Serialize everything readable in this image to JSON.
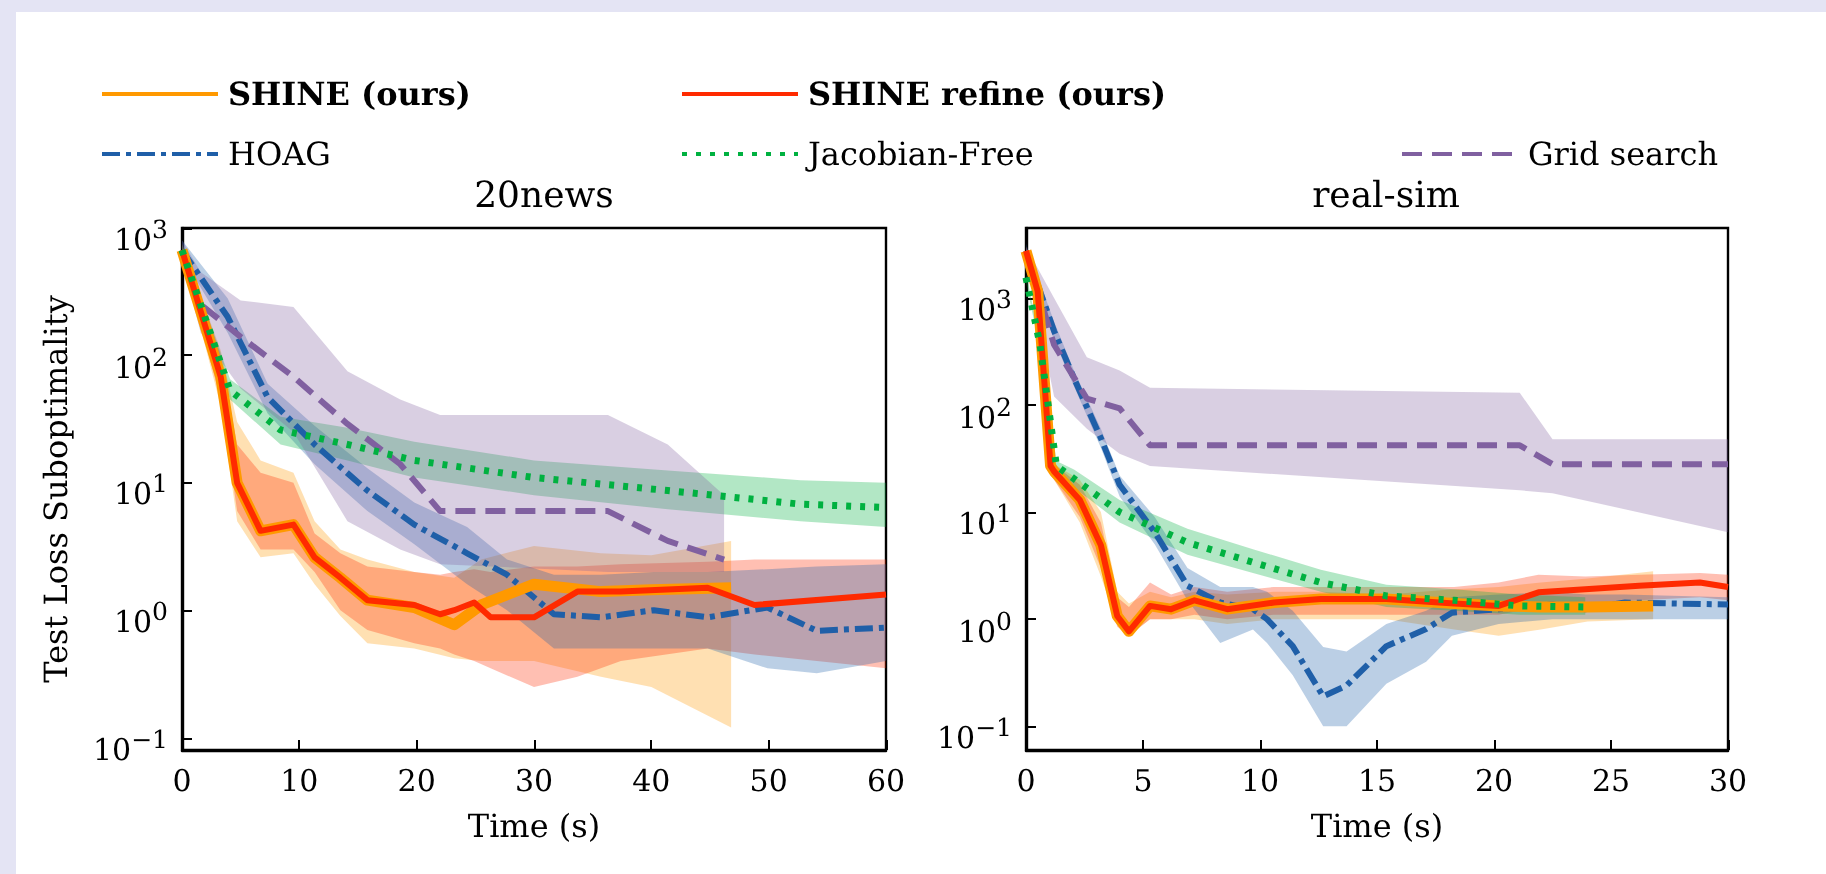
{
  "chart_data": [
    {
      "type": "line",
      "title": "20news",
      "xlabel": "Time (s)",
      "ylabel": "Test Loss Suboptimality",
      "log": "y",
      "legend": "top",
      "marker": "none",
      "grid": false,
      "xlim": [
        0,
        60
      ],
      "xticks": [
        0,
        10,
        20,
        30,
        40,
        50,
        60
      ],
      "ylim": [
        0.08,
        1000
      ],
      "yticks": [
        {
          "value": 0.1,
          "label": "10$^{−1}$"
        },
        {
          "value": 1,
          "label": "10$^{0}$"
        },
        {
          "value": 10,
          "label": "10$^{1}$"
        },
        {
          "value": 100,
          "label": "10$^{2}$"
        },
        {
          "value": 1000,
          "label": "10$^{3}$"
        }
      ],
      "series": [
        {
          "name": "SHINE (ours)",
          "color": "#ff9900",
          "line_style": "solid",
          "x": [
            0,
            3.3,
            4.7,
            6.7,
            9.5,
            11.3,
            13.5,
            15.8,
            19.8,
            23.2,
            25.5,
            30,
            35.7,
            40,
            46.8
          ],
          "values": [
            670,
            68,
            10,
            4.2,
            4.7,
            2.6,
            1.8,
            1.2,
            1.05,
            0.77,
            1.1,
            1.6,
            1.4,
            1.45,
            1.5
          ],
          "lower": [
            600,
            40,
            5,
            2.6,
            2.8,
            1.6,
            0.9,
            0.55,
            0.5,
            0.42,
            0.4,
            0.4,
            0.3,
            0.25,
            0.12
          ],
          "upper": [
            750,
            110,
            30,
            15,
            12,
            5,
            3,
            2.5,
            2,
            1.8,
            2.5,
            3.2,
            2.8,
            2.7,
            3.5
          ]
        },
        {
          "name": "SHINE refine (ours)",
          "color": "#ff2a00",
          "line_style": "solid",
          "x": [
            0,
            3.3,
            4.7,
            6.7,
            9.5,
            11.3,
            13.5,
            15.8,
            19.8,
            22,
            23.2,
            24.9,
            26.3,
            30,
            33.7,
            37.4,
            44.8,
            48.8,
            60
          ],
          "values": [
            670,
            68,
            10,
            4.2,
            4.7,
            2.6,
            1.8,
            1.2,
            1.1,
            0.93,
            1.0,
            1.15,
            0.88,
            0.88,
            1.4,
            1.4,
            1.5,
            1.1,
            1.33
          ],
          "lower": [
            600,
            45,
            6,
            3,
            3,
            2,
            1,
            0.7,
            0.55,
            0.5,
            0.45,
            0.4,
            0.35,
            0.25,
            0.3,
            0.4,
            0.5,
            0.45,
            0.35
          ],
          "upper": [
            750,
            100,
            20,
            12,
            10,
            4,
            2.8,
            2.2,
            2,
            1.9,
            2,
            2.1,
            2,
            2.2,
            2.2,
            2.3,
            2.4,
            2.5,
            2.5
          ]
        },
        {
          "name": "HOAG",
          "color": "#1f5fa8",
          "line_style": "dashdot",
          "x": [
            0,
            3.9,
            7.3,
            11.3,
            15.8,
            19.8,
            24.3,
            27.7,
            31.7,
            35.7,
            40.2,
            44.8,
            49.9,
            54.1,
            60
          ],
          "values": [
            670,
            200,
            47,
            20,
            8.7,
            4.7,
            2.8,
            1.9,
            0.93,
            0.88,
            1.0,
            0.88,
            1.05,
            0.69,
            0.73
          ],
          "lower": [
            600,
            150,
            35,
            14,
            6,
            3.3,
            1.6,
            1,
            0.5,
            0.5,
            0.5,
            0.5,
            0.35,
            0.32,
            0.4
          ],
          "upper": [
            800,
            280,
            60,
            28,
            13,
            7,
            4.5,
            2.5,
            1.9,
            1.9,
            2,
            2,
            2.1,
            2.2,
            2.3
          ]
        },
        {
          "name": "Jacobian-Free",
          "color": "#00b140",
          "line_style": "dotted",
          "x": [
            0,
            4.1,
            8.4,
            14.1,
            19.8,
            30,
            41.4,
            52.7,
            60
          ],
          "values": [
            670,
            53,
            26,
            20,
            15,
            11,
            8.7,
            6.8,
            6.4
          ],
          "lower": [
            600,
            45,
            20,
            15,
            11,
            8,
            6.2,
            5,
            4.5
          ],
          "upper": [
            750,
            65,
            33,
            27,
            21,
            15,
            12.5,
            10.5,
            10
          ]
        },
        {
          "name": "Grid search",
          "color": "#8060a0",
          "line_style": "dashed",
          "x": [
            0,
            1.6,
            5,
            9.5,
            14.1,
            18.6,
            22,
            36.3,
            41.4,
            46.2
          ],
          "values": [
            670,
            250,
            140,
            68,
            29,
            14,
            6.0,
            6.0,
            3.5,
            2.5
          ],
          "lower": [
            550,
            150,
            55,
            25,
            5,
            3,
            2.3,
            2,
            2,
            2
          ],
          "upper": [
            800,
            450,
            270,
            240,
            75,
            45,
            34,
            34,
            20,
            8
          ]
        }
      ]
    },
    {
      "type": "line",
      "title": "real-sim",
      "xlabel": "Time (s)",
      "log": "y",
      "marker": "none",
      "grid": false,
      "xlim": [
        0,
        30
      ],
      "xticks": [
        0,
        5,
        10,
        15,
        20,
        25,
        30
      ],
      "ylim": [
        0.06,
        4500
      ],
      "yticks": [
        {
          "value": 0.1,
          "label": "10$^{−1}$"
        },
        {
          "value": 1,
          "label": "10$^{0}$"
        },
        {
          "value": 10,
          "label": "10$^{1}$"
        },
        {
          "value": 100,
          "label": "10$^{2}$"
        },
        {
          "value": 1000,
          "label": "10$^{3}$"
        }
      ],
      "series": [
        {
          "color": "#ff9900",
          "line_style": "solid",
          "x": [
            0,
            0.5,
            1.05,
            1.2,
            2.3,
            3.2,
            3.9,
            4.4,
            5.3,
            6.2,
            7.2,
            8.6,
            10.6,
            12.6,
            15.4,
            18.3,
            20.2,
            22,
            24,
            26.8
          ],
          "values": [
            2750,
            1150,
            27,
            24,
            13,
            4.9,
            1.07,
            0.77,
            1.33,
            1.24,
            1.5,
            1.24,
            1.43,
            1.54,
            1.54,
            1.4,
            1.33,
            1.3,
            1.3,
            1.33
          ],
          "lower": [
            2400,
            900,
            22,
            20,
            8,
            2.5,
            0.9,
            0.7,
            1.0,
            1.0,
            1.0,
            0.9,
            1.0,
            1.0,
            1.0,
            0.8,
            0.7,
            0.8,
            0.95,
            1.0
          ],
          "upper": [
            3000,
            1400,
            32,
            28,
            20,
            10,
            1.8,
            1.4,
            1.8,
            1.6,
            1.8,
            1.7,
            1.8,
            1.8,
            1.7,
            1.9,
            2.0,
            2.2,
            2.4,
            2.8
          ]
        },
        {
          "color": "#ff2a00",
          "line_style": "solid",
          "x": [
            0,
            0.5,
            1.05,
            1.2,
            2.3,
            3.2,
            3.9,
            4.4,
            5.3,
            6.2,
            7.2,
            8.6,
            10.6,
            12.6,
            15.4,
            18.3,
            20.2,
            21.9,
            23.9,
            26.2,
            28.8,
            30
          ],
          "values": [
            2750,
            1150,
            27,
            24,
            13,
            4.9,
            1.07,
            0.77,
            1.33,
            1.24,
            1.5,
            1.24,
            1.43,
            1.54,
            1.54,
            1.4,
            1.33,
            1.78,
            1.9,
            2.05,
            2.2,
            2.0
          ],
          "lower": [
            2400,
            900,
            22,
            20,
            9,
            3,
            0.85,
            0.7,
            1.0,
            1.0,
            1.1,
            1.0,
            1.1,
            1.1,
            1.1,
            1.1,
            1.1,
            1.3,
            1.4,
            1.5,
            1.6,
            1.5
          ],
          "upper": [
            3000,
            1400,
            32,
            28,
            18,
            8,
            1.6,
            1.3,
            2.2,
            1.7,
            2.0,
            1.8,
            2.0,
            2.0,
            2.0,
            2.0,
            2.2,
            2.6,
            2.5,
            2.6,
            2.7,
            2.6
          ]
        },
        {
          "color": "#1f5fa8",
          "line_style": "dashdot",
          "x": [
            0,
            1.2,
            2.05,
            3.2,
            4.0,
            5.5,
            6.9,
            8.3,
            9.7,
            10.3,
            11.4,
            12.7,
            13.7,
            15.4,
            17.1,
            18.2,
            20.2,
            22.5,
            23.9,
            25.6,
            30
          ],
          "values": [
            2750,
            490,
            178,
            49,
            18,
            6.5,
            2.05,
            1.43,
            1.24,
            1.0,
            0.56,
            0.19,
            0.24,
            0.56,
            0.81,
            1.15,
            1.24,
            1.37,
            1.24,
            1.43,
            1.37
          ],
          "lower": [
            2400,
            400,
            150,
            40,
            14,
            5,
            1.5,
            0.6,
            0.8,
            0.6,
            0.3,
            0.1,
            0.1,
            0.25,
            0.4,
            0.7,
            0.9,
            1.0,
            1.0,
            1.0,
            1.0
          ],
          "upper": [
            3200,
            600,
            210,
            60,
            22,
            9,
            3,
            2,
            2,
            1.8,
            1.2,
            0.55,
            0.5,
            0.9,
            1.2,
            1.6,
            1.7,
            1.8,
            1.7,
            1.7,
            1.6
          ]
        },
        {
          "color": "#00b140",
          "line_style": "dotted",
          "x": [
            0,
            0.6,
            1.3,
            2.05,
            4.0,
            6.9,
            9.7,
            12.6,
            15.4,
            18.3,
            21.1,
            23.9
          ],
          "values": [
            1550,
            365,
            27,
            20.5,
            10,
            5.2,
            3.4,
            2.2,
            1.65,
            1.5,
            1.33,
            1.3
          ],
          "lower": [
            1400,
            330,
            24,
            17,
            8,
            4,
            2.7,
            1.8,
            1.3,
            1.2,
            1.1,
            1.1
          ],
          "upper": [
            1700,
            400,
            30,
            25,
            13,
            7,
            4.5,
            2.9,
            2.1,
            1.9,
            1.7,
            1.6
          ]
        },
        {
          "color": "#8060a0",
          "line_style": "dashed",
          "x": [
            0,
            1.2,
            2.6,
            4.0,
            5.3,
            21.1,
            22.5,
            30
          ],
          "values": [
            2750,
            365,
            115,
            93,
            42,
            42,
            28,
            28
          ],
          "lower": [
            2400,
            120,
            60,
            35,
            27,
            16,
            15,
            6.5
          ],
          "upper": [
            3000,
            1000,
            280,
            210,
            145,
            130,
            48,
            48
          ]
        }
      ]
    }
  ]
}
